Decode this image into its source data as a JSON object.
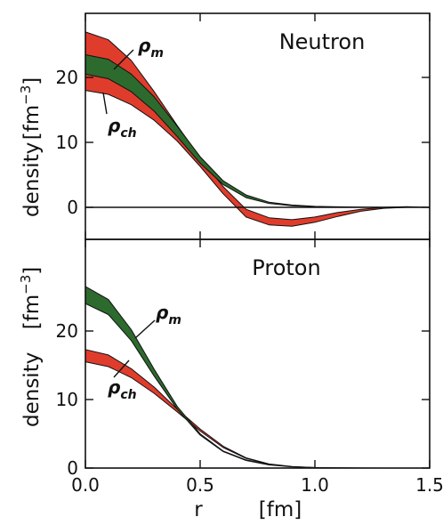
{
  "chart_data": [
    {
      "type": "area",
      "title": "Neutron",
      "xlabel": "r",
      "xunit": "[fm]",
      "ylabel": "density",
      "yunit": "[fm",
      "yunit_sup": "−3",
      "yunit_close": "]",
      "xlim": [
        0,
        1.5
      ],
      "ylim": [
        -5,
        30
      ],
      "yticks": [
        0,
        10,
        20
      ],
      "zero_line": true,
      "series": [
        {
          "name": "ρ_m",
          "label_main": "ρ",
          "label_sub": "m",
          "color": "#2d6a2e",
          "x": [
            0,
            0.1,
            0.2,
            0.3,
            0.4,
            0.5,
            0.6,
            0.7,
            0.8,
            0.9,
            1.0,
            1.1,
            1.2,
            1.3,
            1.4,
            1.5
          ],
          "lower": [
            20.5,
            19.8,
            17.8,
            14.8,
            10.9,
            6.8,
            3.5,
            1.5,
            0.6,
            0.25,
            0.1,
            0.05,
            0.02,
            0.01,
            0.0,
            0.0
          ],
          "upper": [
            23.5,
            22.8,
            20.5,
            17.0,
            12.5,
            7.8,
            4.1,
            1.9,
            0.8,
            0.35,
            0.15,
            0.08,
            0.04,
            0.02,
            0.01,
            0.0
          ]
        },
        {
          "name": "ρ_ch",
          "label_main": "ρ",
          "label_sub": "ch",
          "color": "#e03c2c",
          "x": [
            0,
            0.1,
            0.2,
            0.3,
            0.4,
            0.5,
            0.6,
            0.7,
            0.8,
            0.9,
            1.0,
            1.1,
            1.2,
            1.3,
            1.4,
            1.5
          ],
          "lower": [
            18.0,
            17.4,
            15.8,
            13.4,
            10.2,
            6.3,
            2.1,
            -1.5,
            -2.7,
            -2.9,
            -2.3,
            -1.4,
            -0.6,
            -0.15,
            0.0,
            0.0
          ],
          "upper": [
            27.0,
            25.8,
            22.6,
            17.8,
            12.6,
            7.6,
            3.2,
            -0.3,
            -1.6,
            -1.9,
            -1.5,
            -0.8,
            -0.3,
            0.0,
            0.1,
            0.0
          ]
        }
      ]
    },
    {
      "type": "area",
      "title": "Proton",
      "xlabel": "r",
      "xunit": "[fm]",
      "ylabel": "density",
      "yunit": "[fm",
      "yunit_sup": "−3",
      "yunit_close": "]",
      "xlim": [
        0,
        1.5
      ],
      "ylim": [
        0,
        30
      ],
      "xticks": [
        0.0,
        0.5,
        1.0,
        1.5
      ],
      "xtick_labels": [
        "0.0",
        "0.5",
        "1.0",
        "1.5"
      ],
      "yticks": [
        0,
        10,
        20
      ],
      "series": [
        {
          "name": "ρ_m",
          "label_main": "ρ",
          "label_sub": "m",
          "color": "#2d6a2e",
          "x": [
            0,
            0.1,
            0.2,
            0.3,
            0.4,
            0.5,
            0.6,
            0.7,
            0.8,
            0.9,
            1.0,
            1.1,
            1.2,
            1.3,
            1.4,
            1.5
          ],
          "lower": [
            24.0,
            22.4,
            18.6,
            13.4,
            8.6,
            4.8,
            2.4,
            1.1,
            0.45,
            0.18,
            0.07,
            0.03,
            0.01,
            0.0,
            0.0,
            0.0
          ],
          "upper": [
            26.5,
            24.6,
            20.2,
            14.4,
            9.0,
            5.0,
            2.5,
            1.2,
            0.5,
            0.2,
            0.08,
            0.03,
            0.01,
            0.0,
            0.0,
            0.0
          ]
        },
        {
          "name": "ρ_ch",
          "label_main": "ρ",
          "label_sub": "ch",
          "color": "#e03c2c",
          "x": [
            0,
            0.1,
            0.2,
            0.3,
            0.4,
            0.5,
            0.6,
            0.7,
            0.8,
            0.9,
            1.0,
            1.1,
            1.2,
            1.3,
            1.4,
            1.5
          ],
          "lower": [
            15.5,
            14.8,
            13.2,
            10.9,
            8.2,
            5.4,
            3.0,
            1.4,
            0.55,
            0.2,
            0.06,
            0.02,
            0.0,
            0.0,
            0.0,
            0.0
          ],
          "upper": [
            17.3,
            16.5,
            14.5,
            11.8,
            8.6,
            5.7,
            3.2,
            1.5,
            0.6,
            0.22,
            0.07,
            0.02,
            0.0,
            0.0,
            0.0,
            0.0
          ]
        }
      ]
    }
  ]
}
